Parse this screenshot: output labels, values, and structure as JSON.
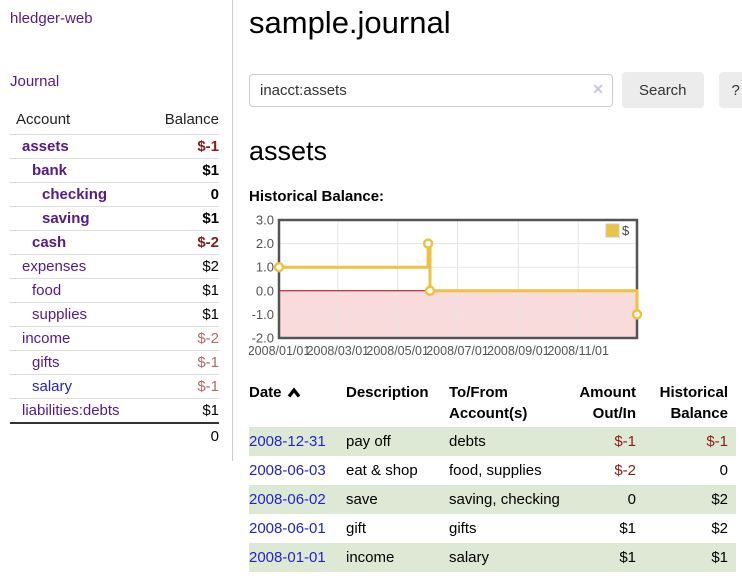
{
  "colors": {
    "link_purple": "#551a8b",
    "link_blue": "#2323cc",
    "negative_dark_red": "#8b1a1a",
    "negative_soft_red": "#b56a6a",
    "row_green": "#dde9d5",
    "series_gold": "#edc240"
  },
  "sidebar": {
    "brand": "hledger-web",
    "nav": {
      "journal": "Journal"
    },
    "table": {
      "col_account": "Account",
      "col_balance": "Balance"
    },
    "accounts": [
      {
        "name": "assets",
        "indent": 1,
        "bold": true,
        "balance": "$-1",
        "balance_style": "neg"
      },
      {
        "name": "bank",
        "indent": 2,
        "bold": true,
        "balance": "$1",
        "balance_style": ""
      },
      {
        "name": "checking",
        "indent": 3,
        "bold": true,
        "balance": "0",
        "balance_style": ""
      },
      {
        "name": "saving",
        "indent": 3,
        "bold": true,
        "balance": "$1",
        "balance_style": ""
      },
      {
        "name": "cash",
        "indent": 2,
        "bold": true,
        "balance": "$-2",
        "balance_style": "neg"
      },
      {
        "name": "expenses",
        "indent": 1,
        "bold": false,
        "balance": "$2",
        "balance_style": ""
      },
      {
        "name": "food",
        "indent": 2,
        "bold": false,
        "balance": "$1",
        "balance_style": ""
      },
      {
        "name": "supplies",
        "indent": 2,
        "bold": false,
        "balance": "$1",
        "balance_style": ""
      },
      {
        "name": "income",
        "indent": 1,
        "bold": false,
        "balance": "$-2",
        "balance_style": "soft"
      },
      {
        "name": "gifts",
        "indent": 2,
        "bold": false,
        "balance": "$-1",
        "balance_style": "soft"
      },
      {
        "name": "salary",
        "indent": 2,
        "bold": false,
        "link_color": "blue",
        "balance": "$-1",
        "balance_style": "soft"
      },
      {
        "name": "liabilities:debts",
        "indent": 1,
        "bold": false,
        "balance": "$1",
        "balance_style": ""
      }
    ],
    "total": "0"
  },
  "header": {
    "title": "sample.journal"
  },
  "search": {
    "value": "inacct:assets",
    "clear_icon": "✕",
    "button": "Search",
    "help": "?"
  },
  "account_page": {
    "heading": "assets",
    "chart_label": "Historical Balance:"
  },
  "chart_data": {
    "type": "line",
    "step": true,
    "title": "Historical Balance",
    "series": [
      {
        "name": "$",
        "color": "#edc240",
        "points": [
          [
            "2008-01-01",
            1
          ],
          [
            "2008-06-01",
            2
          ],
          [
            "2008-06-03",
            0
          ],
          [
            "2008-12-31",
            -1
          ]
        ]
      }
    ],
    "x_start": "2008-01-01",
    "x_range_days": 365,
    "x_ticks": [
      "2008/01/01",
      "2008/03/01",
      "2008/05/01",
      "2008/07/01",
      "2008/09/01",
      "2008/11/01"
    ],
    "y_ticks": [
      3.0,
      2.0,
      1.0,
      0.0,
      -1.0,
      -2.0
    ],
    "ylim": [
      -2.0,
      3.0
    ],
    "legend": {
      "label": "$",
      "position": "top-right"
    },
    "grid": true,
    "grid_color": "#e5e5e5",
    "zero_line_color": "#aa0000",
    "negative_region_color": "#f9dbdb",
    "border_color": "#545454"
  },
  "register": {
    "sort": {
      "column": "Date",
      "direction": "ascending",
      "icon": "chevron-up"
    },
    "columns": {
      "date": "Date",
      "description": "Description",
      "accounts": "To/From Account(s)",
      "amount": "Amount Out/In",
      "balance": "Historical Balance"
    },
    "rows": [
      {
        "date": "2008-12-31",
        "description": "pay off",
        "accounts": "debts",
        "amount": "$-1",
        "amount_style": "neg",
        "balance": "$-1",
        "balance_style": "neg"
      },
      {
        "date": "2008-06-03",
        "description": "eat & shop",
        "accounts": "food, supplies",
        "amount": "$-2",
        "amount_style": "neg",
        "balance": "0",
        "balance_style": ""
      },
      {
        "date": "2008-06-02",
        "description": "save",
        "accounts": "saving, checking",
        "amount": "0",
        "amount_style": "",
        "balance": "$2",
        "balance_style": ""
      },
      {
        "date": "2008-06-01",
        "description": "gift",
        "accounts": "gifts",
        "amount": "$1",
        "amount_style": "",
        "balance": "$2",
        "balance_style": ""
      },
      {
        "date": "2008-01-01",
        "description": "income",
        "accounts": "salary",
        "amount": "$1",
        "amount_style": "",
        "balance": "$1",
        "balance_style": ""
      }
    ]
  }
}
